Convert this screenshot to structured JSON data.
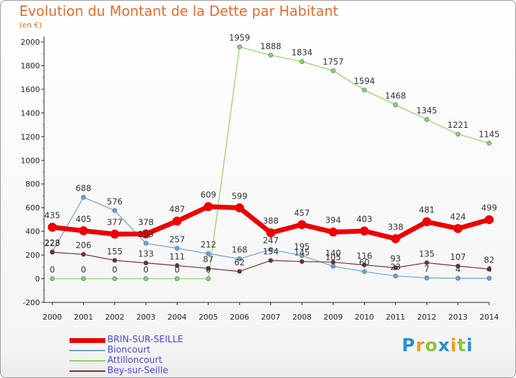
{
  "header": {
    "title": "Evolution du Montant de la Dette par Habitant",
    "subtitle": "(en €)"
  },
  "logo": {
    "text": "Proxiti",
    "colors": [
      "#2c8fd6",
      "#f19a1d",
      "#8cc43c",
      "#2c8fd6",
      "#f19a1d",
      "#8cc43c",
      "#2c8fd6"
    ]
  },
  "chart_data": {
    "type": "line",
    "x": [
      "2000",
      "2001",
      "2002",
      "2003",
      "2004",
      "2005",
      "2006",
      "2007",
      "2008",
      "2009",
      "2010",
      "2011",
      "2012",
      "2013",
      "2014"
    ],
    "ylim": [
      -200,
      2000
    ],
    "yticks": [
      "-200",
      "0",
      "200",
      "400",
      "600",
      "800",
      "1000",
      "1200",
      "1400",
      "1600",
      "1800",
      "2000"
    ],
    "grid": false,
    "legend_position": "bottom-left",
    "series": [
      {
        "name": "BRIN-SUR-SEILLE",
        "color": "#ee0000",
        "values": [
          435,
          405,
          377,
          378,
          487,
          609,
          599,
          388,
          457,
          394,
          403,
          338,
          481,
          424,
          499
        ],
        "labels": [
          "435",
          "405",
          "377",
          "378",
          "487",
          "609",
          "599",
          "388",
          "457",
          "394",
          "403",
          "338",
          "481",
          "424",
          "499"
        ]
      },
      {
        "name": "Bioncourt",
        "color": "#6fa0d2",
        "values": [
          228,
          688,
          576,
          299,
          257,
          212,
          168,
          247,
          195,
          105,
          60,
          23,
          7,
          4,
          4
        ],
        "labels": [
          "228",
          "688",
          "576",
          "299",
          "257",
          "212",
          "168",
          "247",
          "195",
          "105",
          "60",
          "23",
          "7",
          "4",
          "4"
        ]
      },
      {
        "name": "Attilloncourt",
        "color": "#90d060",
        "values": [
          0,
          0,
          0,
          0,
          0,
          0,
          1959,
          1888,
          1834,
          1757,
          1594,
          1468,
          1345,
          1221,
          1145
        ],
        "labels": [
          "0",
          "0",
          "0",
          "0",
          "0",
          "0",
          "1959",
          "1888",
          "1834",
          "1757",
          "1594",
          "1468",
          "1345",
          "1221",
          "1145"
        ]
      },
      {
        "name": "Bey-sur-Seille",
        "color": "#7a2a2a",
        "values": [
          223,
          206,
          155,
          133,
          111,
          87,
          62,
          154,
          145,
          140,
          116,
          93,
          135,
          107,
          82
        ],
        "labels": [
          "223",
          "206",
          "155",
          "133",
          "111",
          "87",
          "62",
          "154",
          "145",
          "140",
          "116",
          "93",
          "135",
          "107",
          "82"
        ]
      }
    ]
  }
}
